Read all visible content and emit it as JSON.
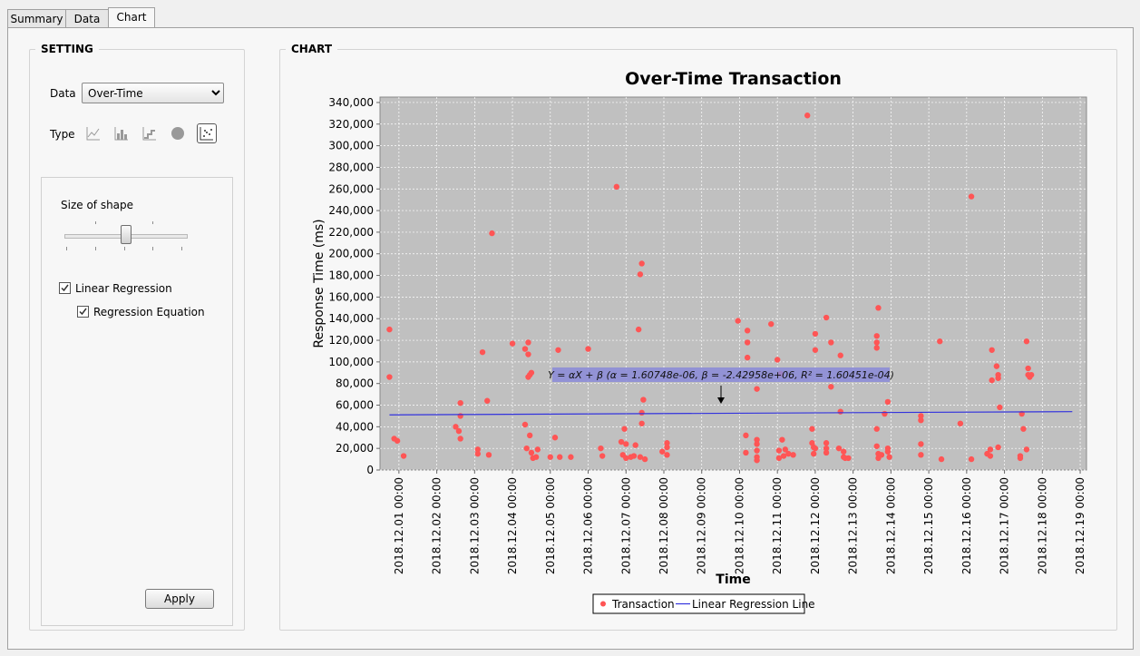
{
  "tabs": [
    {
      "label": "Summary"
    },
    {
      "label": "Data"
    },
    {
      "label": "Chart"
    }
  ],
  "setting": {
    "title": "SETTING",
    "data_label": "Data",
    "data_value": "Over-Time",
    "type_label": "Type",
    "type_icons": [
      "line-chart-icon",
      "bar-chart-icon",
      "step-chart-icon",
      "pie-chart-icon",
      "scatter-chart-icon"
    ],
    "selected_type": "scatter-chart-icon",
    "size_label": "Size of shape",
    "size_level": 0.5,
    "linear_regression_label": "Linear Regression",
    "linear_regression_checked": true,
    "regression_equation_label": "Regression Equation",
    "regression_equation_checked": true,
    "apply_label": "Apply"
  },
  "chart_panel": {
    "title": "CHART"
  },
  "chart_data": {
    "type": "scatter",
    "title": "Over-Time Transaction",
    "xlabel": "Time",
    "ylabel": "Response Time (ms)",
    "ylim": [
      0,
      345000
    ],
    "xlim": [
      "2018.11.30 12:00",
      "2018.12.19 04:00"
    ],
    "yticks": [
      "0",
      "20,000",
      "40,000",
      "60,000",
      "80,000",
      "100,000",
      "120,000",
      "140,000",
      "160,000",
      "180,000",
      "200,000",
      "220,000",
      "240,000",
      "260,000",
      "280,000",
      "300,000",
      "320,000",
      "340,000"
    ],
    "xticks": [
      "2018.12.01 00:00",
      "2018.12.02 00:00",
      "2018.12.03 00:00",
      "2018.12.04 00:00",
      "2018.12.05 00:00",
      "2018.12.06 00:00",
      "2018.12.07 00:00",
      "2018.12.08 00:00",
      "2018.12.09 00:00",
      "2018.12.10 00:00",
      "2018.12.11 00:00",
      "2018.12.12 00:00",
      "2018.12.13 00:00",
      "2018.12.14 00:00",
      "2018.12.15 00:00",
      "2018.12.16 00:00",
      "2018.12.17 00:00",
      "2018.12.18 00:00",
      "2018.12.19 00:00"
    ],
    "grid": true,
    "equation": "Y = αX + β  (α = 1.60748e-06, β = -2.42958e+06, R² = 1.60451e-04)",
    "regression_line": {
      "x": [
        "2018.11.30 18:00",
        "2018.12.18 19:00"
      ],
      "y": [
        51000,
        54000
      ]
    },
    "legend": [
      {
        "name": "Transaction",
        "color": "#ff5555"
      },
      {
        "name": "Linear Regression Line",
        "color": "#3333dd"
      }
    ],
    "legend_position": "bottom",
    "series": [
      {
        "name": "Transaction",
        "color": "#ff5555",
        "points": [
          [
            "2018.11.30 18:00",
            130000
          ],
          [
            "2018.11.30 18:00",
            86000
          ],
          [
            "2018.11.30 21:00",
            29000
          ],
          [
            "2018.11.30 23:00",
            27000
          ],
          [
            "2018.12.01 03:00",
            13000
          ],
          [
            "2018.12.02 12:00",
            40000
          ],
          [
            "2018.12.02 14:00",
            36000
          ],
          [
            "2018.12.02 15:00",
            62000
          ],
          [
            "2018.12.02 15:00",
            50000
          ],
          [
            "2018.12.02 15:00",
            29000
          ],
          [
            "2018.12.03 02:00",
            19000
          ],
          [
            "2018.12.03 02:00",
            15000
          ],
          [
            "2018.12.03 05:00",
            109000
          ],
          [
            "2018.12.03 08:00",
            64000
          ],
          [
            "2018.12.03 09:00",
            14000
          ],
          [
            "2018.12.03 11:00",
            219000
          ],
          [
            "2018.12.04 00:00",
            117000
          ],
          [
            "2018.12.04 08:00",
            112000
          ],
          [
            "2018.12.04 08:00",
            42000
          ],
          [
            "2018.12.04 10:00",
            107000
          ],
          [
            "2018.12.04 10:00",
            118000
          ],
          [
            "2018.12.04 10:00",
            86000
          ],
          [
            "2018.12.04 11:00",
            88000
          ],
          [
            "2018.12.04 12:00",
            90000
          ],
          [
            "2018.12.04 09:00",
            20000
          ],
          [
            "2018.12.04 11:00",
            32000
          ],
          [
            "2018.12.04 12:00",
            16000
          ],
          [
            "2018.12.04 13:00",
            11000
          ],
          [
            "2018.12.04 15:00",
            12000
          ],
          [
            "2018.12.04 16:00",
            19000
          ],
          [
            "2018.12.05 00:00",
            12000
          ],
          [
            "2018.12.05 03:00",
            30000
          ],
          [
            "2018.12.05 05:00",
            111000
          ],
          [
            "2018.12.05 06:00",
            12000
          ],
          [
            "2018.12.05 13:00",
            12000
          ],
          [
            "2018.12.06 00:00",
            112000
          ],
          [
            "2018.12.06 08:00",
            20000
          ],
          [
            "2018.12.06 09:00",
            13000
          ],
          [
            "2018.12.06 18:00",
            262000
          ],
          [
            "2018.12.06 21:00",
            26000
          ],
          [
            "2018.12.06 22:00",
            14000
          ],
          [
            "2018.12.06 23:00",
            38000
          ],
          [
            "2018.12.07 00:00",
            24000
          ],
          [
            "2018.12.07 00:00",
            11000
          ],
          [
            "2018.12.07 03:00",
            12000
          ],
          [
            "2018.12.07 05:00",
            13000
          ],
          [
            "2018.12.07 06:00",
            23000
          ],
          [
            "2018.12.07 08:00",
            130000
          ],
          [
            "2018.12.07 09:00",
            181000
          ],
          [
            "2018.12.07 10:00",
            191000
          ],
          [
            "2018.12.07 10:00",
            53000
          ],
          [
            "2018.12.07 10:00",
            43000
          ],
          [
            "2018.12.07 11:00",
            65000
          ],
          [
            "2018.12.07 09:00",
            12000
          ],
          [
            "2018.12.07 12:00",
            10000
          ],
          [
            "2018.12.07 23:00",
            17000
          ],
          [
            "2018.12.08 02:00",
            25000
          ],
          [
            "2018.12.08 02:00",
            21000
          ],
          [
            "2018.12.08 02:00",
            14000
          ],
          [
            "2018.12.09 23:00",
            138000
          ],
          [
            "2018.12.10 05:00",
            129000
          ],
          [
            "2018.12.10 05:00",
            118000
          ],
          [
            "2018.12.10 05:00",
            104000
          ],
          [
            "2018.12.10 04:00",
            32000
          ],
          [
            "2018.12.10 04:00",
            16000
          ],
          [
            "2018.12.10 11:00",
            75000
          ],
          [
            "2018.12.10 11:00",
            28000
          ],
          [
            "2018.12.10 11:00",
            24000
          ],
          [
            "2018.12.10 11:00",
            18000
          ],
          [
            "2018.12.10 11:00",
            12000
          ],
          [
            "2018.12.10 11:00",
            9000
          ],
          [
            "2018.12.10 20:00",
            135000
          ],
          [
            "2018.12.11 00:00",
            102000
          ],
          [
            "2018.12.11 02:00",
            89000
          ],
          [
            "2018.12.11 01:00",
            18000
          ],
          [
            "2018.12.11 01:00",
            11000
          ],
          [
            "2018.12.11 03:00",
            28000
          ],
          [
            "2018.12.11 04:00",
            13000
          ],
          [
            "2018.12.11 05:00",
            19000
          ],
          [
            "2018.12.11 07:00",
            15000
          ],
          [
            "2018.12.11 10:00",
            14000
          ],
          [
            "2018.12.11 19:00",
            328000
          ],
          [
            "2018.12.11 22:00",
            38000
          ],
          [
            "2018.12.11 22:00",
            25000
          ],
          [
            "2018.12.11 23:00",
            21000
          ],
          [
            "2018.12.12 00:00",
            126000
          ],
          [
            "2018.12.12 00:00",
            111000
          ],
          [
            "2018.12.12 00:00",
            20000
          ],
          [
            "2018.12.11 23:00",
            15000
          ],
          [
            "2018.12.12 07:00",
            141000
          ],
          [
            "2018.12.12 07:00",
            25000
          ],
          [
            "2018.12.12 07:00",
            20000
          ],
          [
            "2018.12.12 07:00",
            16000
          ],
          [
            "2018.12.12 10:00",
            118000
          ],
          [
            "2018.12.12 10:00",
            77000
          ],
          [
            "2018.12.12 16:00",
            106000
          ],
          [
            "2018.12.12 16:00",
            54000
          ],
          [
            "2018.12.12 15:00",
            20000
          ],
          [
            "2018.12.12 18:00",
            17000
          ],
          [
            "2018.12.12 18:00",
            12000
          ],
          [
            "2018.12.12 19:00",
            11000
          ],
          [
            "2018.12.12 21:00",
            11000
          ],
          [
            "2018.12.13 16:00",
            150000
          ],
          [
            "2018.12.13 15:00",
            124000
          ],
          [
            "2018.12.13 15:00",
            118000
          ],
          [
            "2018.12.13 15:00",
            113000
          ],
          [
            "2018.12.13 15:00",
            38000
          ],
          [
            "2018.12.13 15:00",
            22000
          ],
          [
            "2018.12.13 16:00",
            15000
          ],
          [
            "2018.12.13 16:00",
            11000
          ],
          [
            "2018.12.13 18:00",
            14000
          ],
          [
            "2018.12.13 20:00",
            52000
          ],
          [
            "2018.12.13 22:00",
            63000
          ],
          [
            "2018.12.13 22:00",
            20000
          ],
          [
            "2018.12.13 22:00",
            17000
          ],
          [
            "2018.12.13 23:00",
            12000
          ],
          [
            "2018.12.14 19:00",
            50000
          ],
          [
            "2018.12.14 19:00",
            46000
          ],
          [
            "2018.12.14 19:00",
            24000
          ],
          [
            "2018.12.14 19:00",
            14000
          ],
          [
            "2018.12.15 07:00",
            119000
          ],
          [
            "2018.12.15 08:00",
            10000
          ],
          [
            "2018.12.15 20:00",
            43000
          ],
          [
            "2018.12.16 03:00",
            253000
          ],
          [
            "2018.12.16 03:00",
            10000
          ],
          [
            "2018.12.16 13:00",
            15000
          ],
          [
            "2018.12.16 15:00",
            19000
          ],
          [
            "2018.12.16 15:00",
            13000
          ],
          [
            "2018.12.16 16:00",
            111000
          ],
          [
            "2018.12.16 16:00",
            83000
          ],
          [
            "2018.12.16 19:00",
            96000
          ],
          [
            "2018.12.16 20:00",
            88000
          ],
          [
            "2018.12.16 20:00",
            85000
          ],
          [
            "2018.12.16 21:00",
            58000
          ],
          [
            "2018.12.16 20:00",
            21000
          ],
          [
            "2018.12.17 10:00",
            13000
          ],
          [
            "2018.12.17 10:00",
            11000
          ],
          [
            "2018.12.17 11:00",
            52000
          ],
          [
            "2018.12.17 12:00",
            38000
          ],
          [
            "2018.12.17 14:00",
            119000
          ],
          [
            "2018.12.17 15:00",
            94000
          ],
          [
            "2018.12.17 15:00",
            88000
          ],
          [
            "2018.12.17 16:00",
            86000
          ],
          [
            "2018.12.17 17:00",
            88000
          ],
          [
            "2018.12.17 14:00",
            19000
          ]
        ]
      }
    ]
  }
}
